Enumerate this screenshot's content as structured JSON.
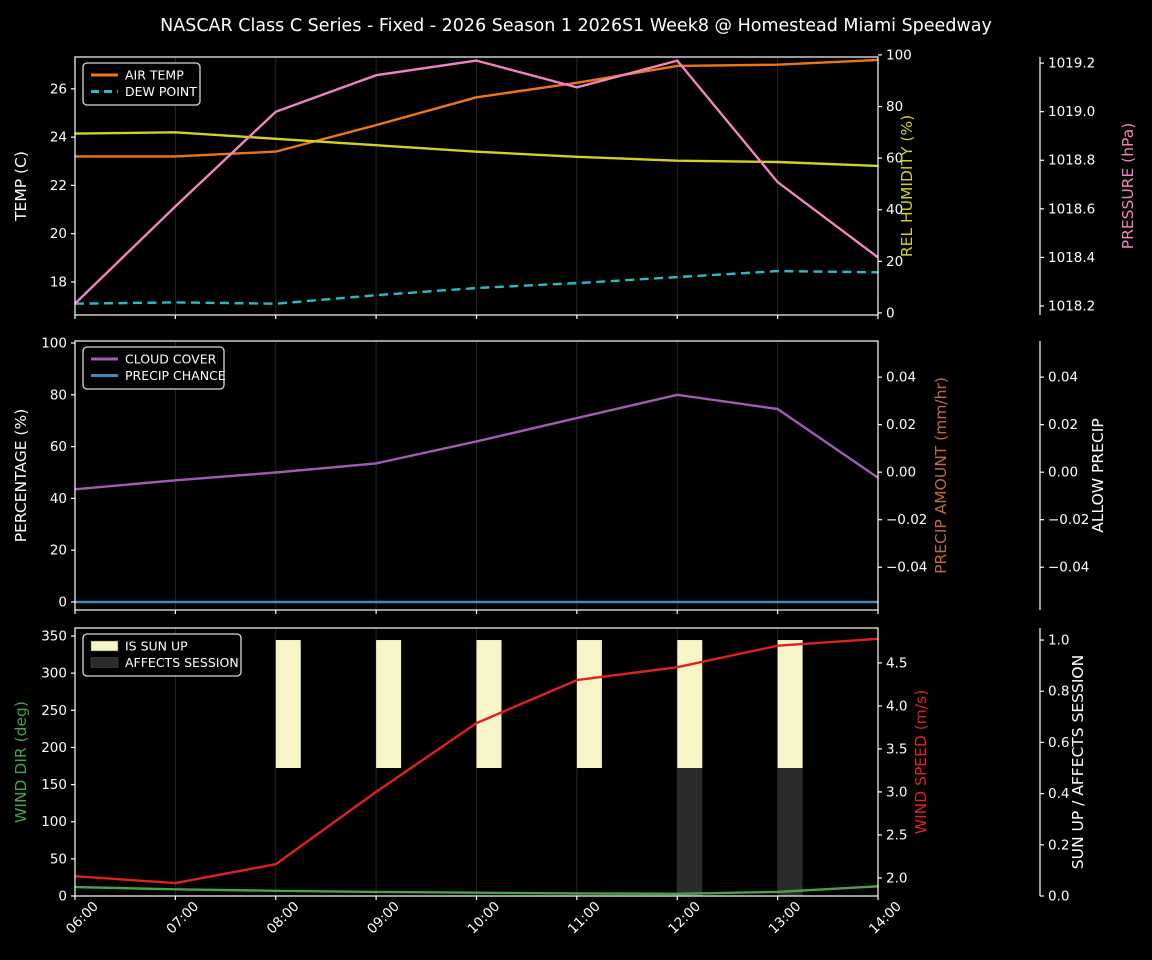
{
  "title": "NASCAR Class C Series - Fixed - 2026 Season 1 2026S1 Week8 @ Homestead Miami Speedway",
  "colors": {
    "background": "#000000",
    "spine": "#ffffff",
    "tick_label": "#ffffff",
    "gridline": "#262626",
    "legend_border": "#d9d9d9",
    "air_temp": "#ef7515",
    "dew_point": "#25bec6",
    "rel_humidity": "#d2d222",
    "pressure": "#f184c0",
    "cloud_cover": "#a05cb5",
    "precip_chance": "#4687c0",
    "precip_amount": "#c06c34",
    "wind_dir": "#48a348",
    "wind_speed": "#de2220",
    "sun_up_bar": "#f7f4c8",
    "affects_session_bar": "#2b2b2b"
  },
  "x_categories": [
    "06:00",
    "07:00",
    "08:00",
    "09:00",
    "10:00",
    "11:00",
    "12:00",
    "13:00",
    "14:00"
  ],
  "chart_data": [
    {
      "type": "line",
      "x": [
        "06:00",
        "07:00",
        "08:00",
        "09:00",
        "10:00",
        "11:00",
        "12:00",
        "13:00",
        "14:00"
      ],
      "legend": [
        {
          "label": "AIR TEMP",
          "color": "#ef7515",
          "swatch": "line"
        },
        {
          "label": "DEW POINT",
          "color": "#25bec6",
          "swatch": "dashed"
        }
      ],
      "axes": {
        "left": {
          "label": "TEMP (C)",
          "color": "#ffffff",
          "range": [
            16.63,
            27.32
          ],
          "ticks": [
            {
              "v": 18,
              "t": "18"
            },
            {
              "v": 20,
              "t": "20"
            },
            {
              "v": 22,
              "t": "22"
            },
            {
              "v": 24,
              "t": "24"
            },
            {
              "v": 26,
              "t": "26"
            }
          ]
        },
        "right_inner": {
          "label": "REL HUMIDITY (%)",
          "color": "#d2d222",
          "range": [
            -0.8,
            99.2
          ],
          "ticks": [
            {
              "v": 0,
              "t": "0"
            },
            {
              "v": 20,
              "t": "20"
            },
            {
              "v": 40,
              "t": "40"
            },
            {
              "v": 60,
              "t": "60"
            },
            {
              "v": 80,
              "t": "80"
            },
            {
              "v": 100,
              "t": "100"
            }
          ]
        },
        "right_outer": {
          "label": "PRESSURE (hPa)",
          "color": "#f184c0",
          "range": [
            1018.163,
            1019.225
          ],
          "ticks": [
            {
              "v": 1018.2,
              "t": "1018.2"
            },
            {
              "v": 1018.4,
              "t": "1018.4"
            },
            {
              "v": 1018.6,
              "t": "1018.6"
            },
            {
              "v": 1018.8,
              "t": "1018.8"
            },
            {
              "v": 1019.0,
              "t": "1019.0"
            },
            {
              "v": 1019.2,
              "t": "1019.2"
            }
          ]
        }
      },
      "series": [
        {
          "name": "AIR TEMP",
          "axis": "left",
          "color": "#ef7515",
          "dash": false,
          "values": [
            23.2,
            23.2,
            23.4,
            24.5,
            25.65,
            26.25,
            26.95,
            27.0,
            27.2
          ]
        },
        {
          "name": "DEW POINT",
          "axis": "left",
          "color": "#25bec6",
          "dash": true,
          "values": [
            17.1,
            17.15,
            17.1,
            17.45,
            17.75,
            17.95,
            18.2,
            18.45,
            18.4
          ]
        },
        {
          "name": "REL HUMIDITY",
          "axis": "right_inner",
          "color": "#d2d222",
          "dash": false,
          "values": [
            69.5,
            70,
            67.5,
            65,
            62.5,
            60.5,
            59,
            58.5,
            57
          ]
        },
        {
          "name": "PRESSURE",
          "axis": "right_outer",
          "color": "#f184c0",
          "dash": false,
          "values": [
            1018.21,
            1018.61,
            1019.0,
            1019.15,
            1019.21,
            1019.1,
            1019.21,
            1018.71,
            1018.4
          ]
        }
      ]
    },
    {
      "type": "line",
      "x": [
        "06:00",
        "07:00",
        "08:00",
        "09:00",
        "10:00",
        "11:00",
        "12:00",
        "13:00",
        "14:00"
      ],
      "legend": [
        {
          "label": "CLOUD COVER",
          "color": "#a05cb5",
          "swatch": "line"
        },
        {
          "label": "PRECIP CHANCE",
          "color": "#4687c0",
          "swatch": "line"
        }
      ],
      "axes": {
        "left": {
          "label": "PERCENTAGE (%)",
          "color": "#ffffff",
          "range": [
            -3.1,
            100.77
          ],
          "ticks": [
            {
              "v": 0,
              "t": "0"
            },
            {
              "v": 20,
              "t": "20"
            },
            {
              "v": 40,
              "t": "40"
            },
            {
              "v": 60,
              "t": "60"
            },
            {
              "v": 80,
              "t": "80"
            },
            {
              "v": 100,
              "t": "100"
            }
          ]
        },
        "right_inner": {
          "label": "PRECIP AMOUNT (mm/hr)",
          "color": "#c06c34",
          "range": [
            -0.058,
            0.0552
          ],
          "ticks": [
            {
              "v": 0.04,
              "t": "0.04"
            },
            {
              "v": 0.02,
              "t": "0.02"
            },
            {
              "v": 0,
              "t": "0.00"
            },
            {
              "v": -0.02,
              "t": "−0.02"
            },
            {
              "v": -0.04,
              "t": "−0.04"
            }
          ]
        },
        "right_outer": {
          "label": "ALLOW PRECIP",
          "color": "#ffffff",
          "range": [
            -0.058,
            0.0552
          ],
          "ticks": [
            {
              "v": 0.04,
              "t": "0.04"
            },
            {
              "v": 0.02,
              "t": "0.02"
            },
            {
              "v": 0,
              "t": "0.00"
            },
            {
              "v": -0.02,
              "t": "−0.02"
            },
            {
              "v": -0.04,
              "t": "−0.04"
            }
          ]
        }
      },
      "series": [
        {
          "name": "CLOUD COVER",
          "axis": "left",
          "color": "#a05cb5",
          "dash": false,
          "values": [
            43.5,
            47,
            50,
            53.5,
            62,
            71,
            80,
            74.5,
            48
          ]
        },
        {
          "name": "PRECIP CHANCE",
          "axis": "left",
          "color": "#4687c0",
          "dash": false,
          "values": [
            0,
            0,
            0,
            0,
            0,
            0,
            0,
            0,
            0
          ]
        }
      ]
    },
    {
      "type": "line",
      "x": [
        "06:00",
        "07:00",
        "08:00",
        "09:00",
        "10:00",
        "11:00",
        "12:00",
        "13:00",
        "14:00"
      ],
      "legend": [
        {
          "label": "IS SUN UP",
          "color": "#f7f4c8",
          "swatch": "patch"
        },
        {
          "label": "AFFECTS SESSION",
          "color": "#2b2b2b",
          "swatch": "patch"
        }
      ],
      "axes": {
        "left": {
          "label": "WIND DIR (deg)",
          "color": "#48a348",
          "range": [
            0,
            360.8
          ],
          "ticks": [
            {
              "v": 0,
              "t": "0"
            },
            {
              "v": 50,
              "t": "50"
            },
            {
              "v": 100,
              "t": "100"
            },
            {
              "v": 150,
              "t": "150"
            },
            {
              "v": 200,
              "t": "200"
            },
            {
              "v": 250,
              "t": "250"
            },
            {
              "v": 300,
              "t": "300"
            },
            {
              "v": 350,
              "t": "350"
            }
          ]
        },
        "right_inner": {
          "label": "WIND SPEED (m/s)",
          "color": "#de2220",
          "range": [
            1.79,
            4.906
          ],
          "ticks": [
            {
              "v": 2.0,
              "t": "2.0"
            },
            {
              "v": 2.5,
              "t": "2.5"
            },
            {
              "v": 3.0,
              "t": "3.0"
            },
            {
              "v": 3.5,
              "t": "3.5"
            },
            {
              "v": 4.0,
              "t": "4.0"
            },
            {
              "v": 4.5,
              "t": "4.5"
            }
          ]
        },
        "right_outer": {
          "label": "SUN UP / AFFECTS SESSION",
          "color": "#ffffff",
          "range": [
            0,
            1.047
          ],
          "ticks": [
            {
              "v": 0,
              "t": "0.0"
            },
            {
              "v": 0.2,
              "t": "0.2"
            },
            {
              "v": 0.4,
              "t": "0.4"
            },
            {
              "v": 0.6,
              "t": "0.6"
            },
            {
              "v": 0.8,
              "t": "0.8"
            },
            {
              "v": 1.0,
              "t": "1.0"
            }
          ]
        }
      },
      "bars": [
        {
          "name": "IS SUN UP",
          "axis": "right_outer",
          "color": "#f7f4c8",
          "span": [
            0.5,
            1.0
          ],
          "values": [
            0,
            0,
            1,
            1,
            1,
            1,
            1,
            1,
            0
          ]
        },
        {
          "name": "AFFECTS SESSION",
          "axis": "right_outer",
          "color": "#2b2b2b",
          "span": [
            0,
            0.5
          ],
          "values": [
            0,
            0,
            0,
            0,
            0,
            0,
            1,
            1,
            0
          ]
        }
      ],
      "series": [
        {
          "name": "WIND DIR",
          "axis": "left",
          "color": "#48a348",
          "dash": false,
          "values": [
            12,
            9,
            7,
            5.5,
            4.5,
            3.5,
            3,
            5.5,
            13
          ]
        },
        {
          "name": "WIND SPEED",
          "axis": "right_inner",
          "color": "#de2220",
          "dash": false,
          "values": [
            2.02,
            1.94,
            2.16,
            3.0,
            3.8,
            4.3,
            4.45,
            4.7,
            4.78
          ]
        }
      ],
      "show_x_labels": true
    }
  ]
}
